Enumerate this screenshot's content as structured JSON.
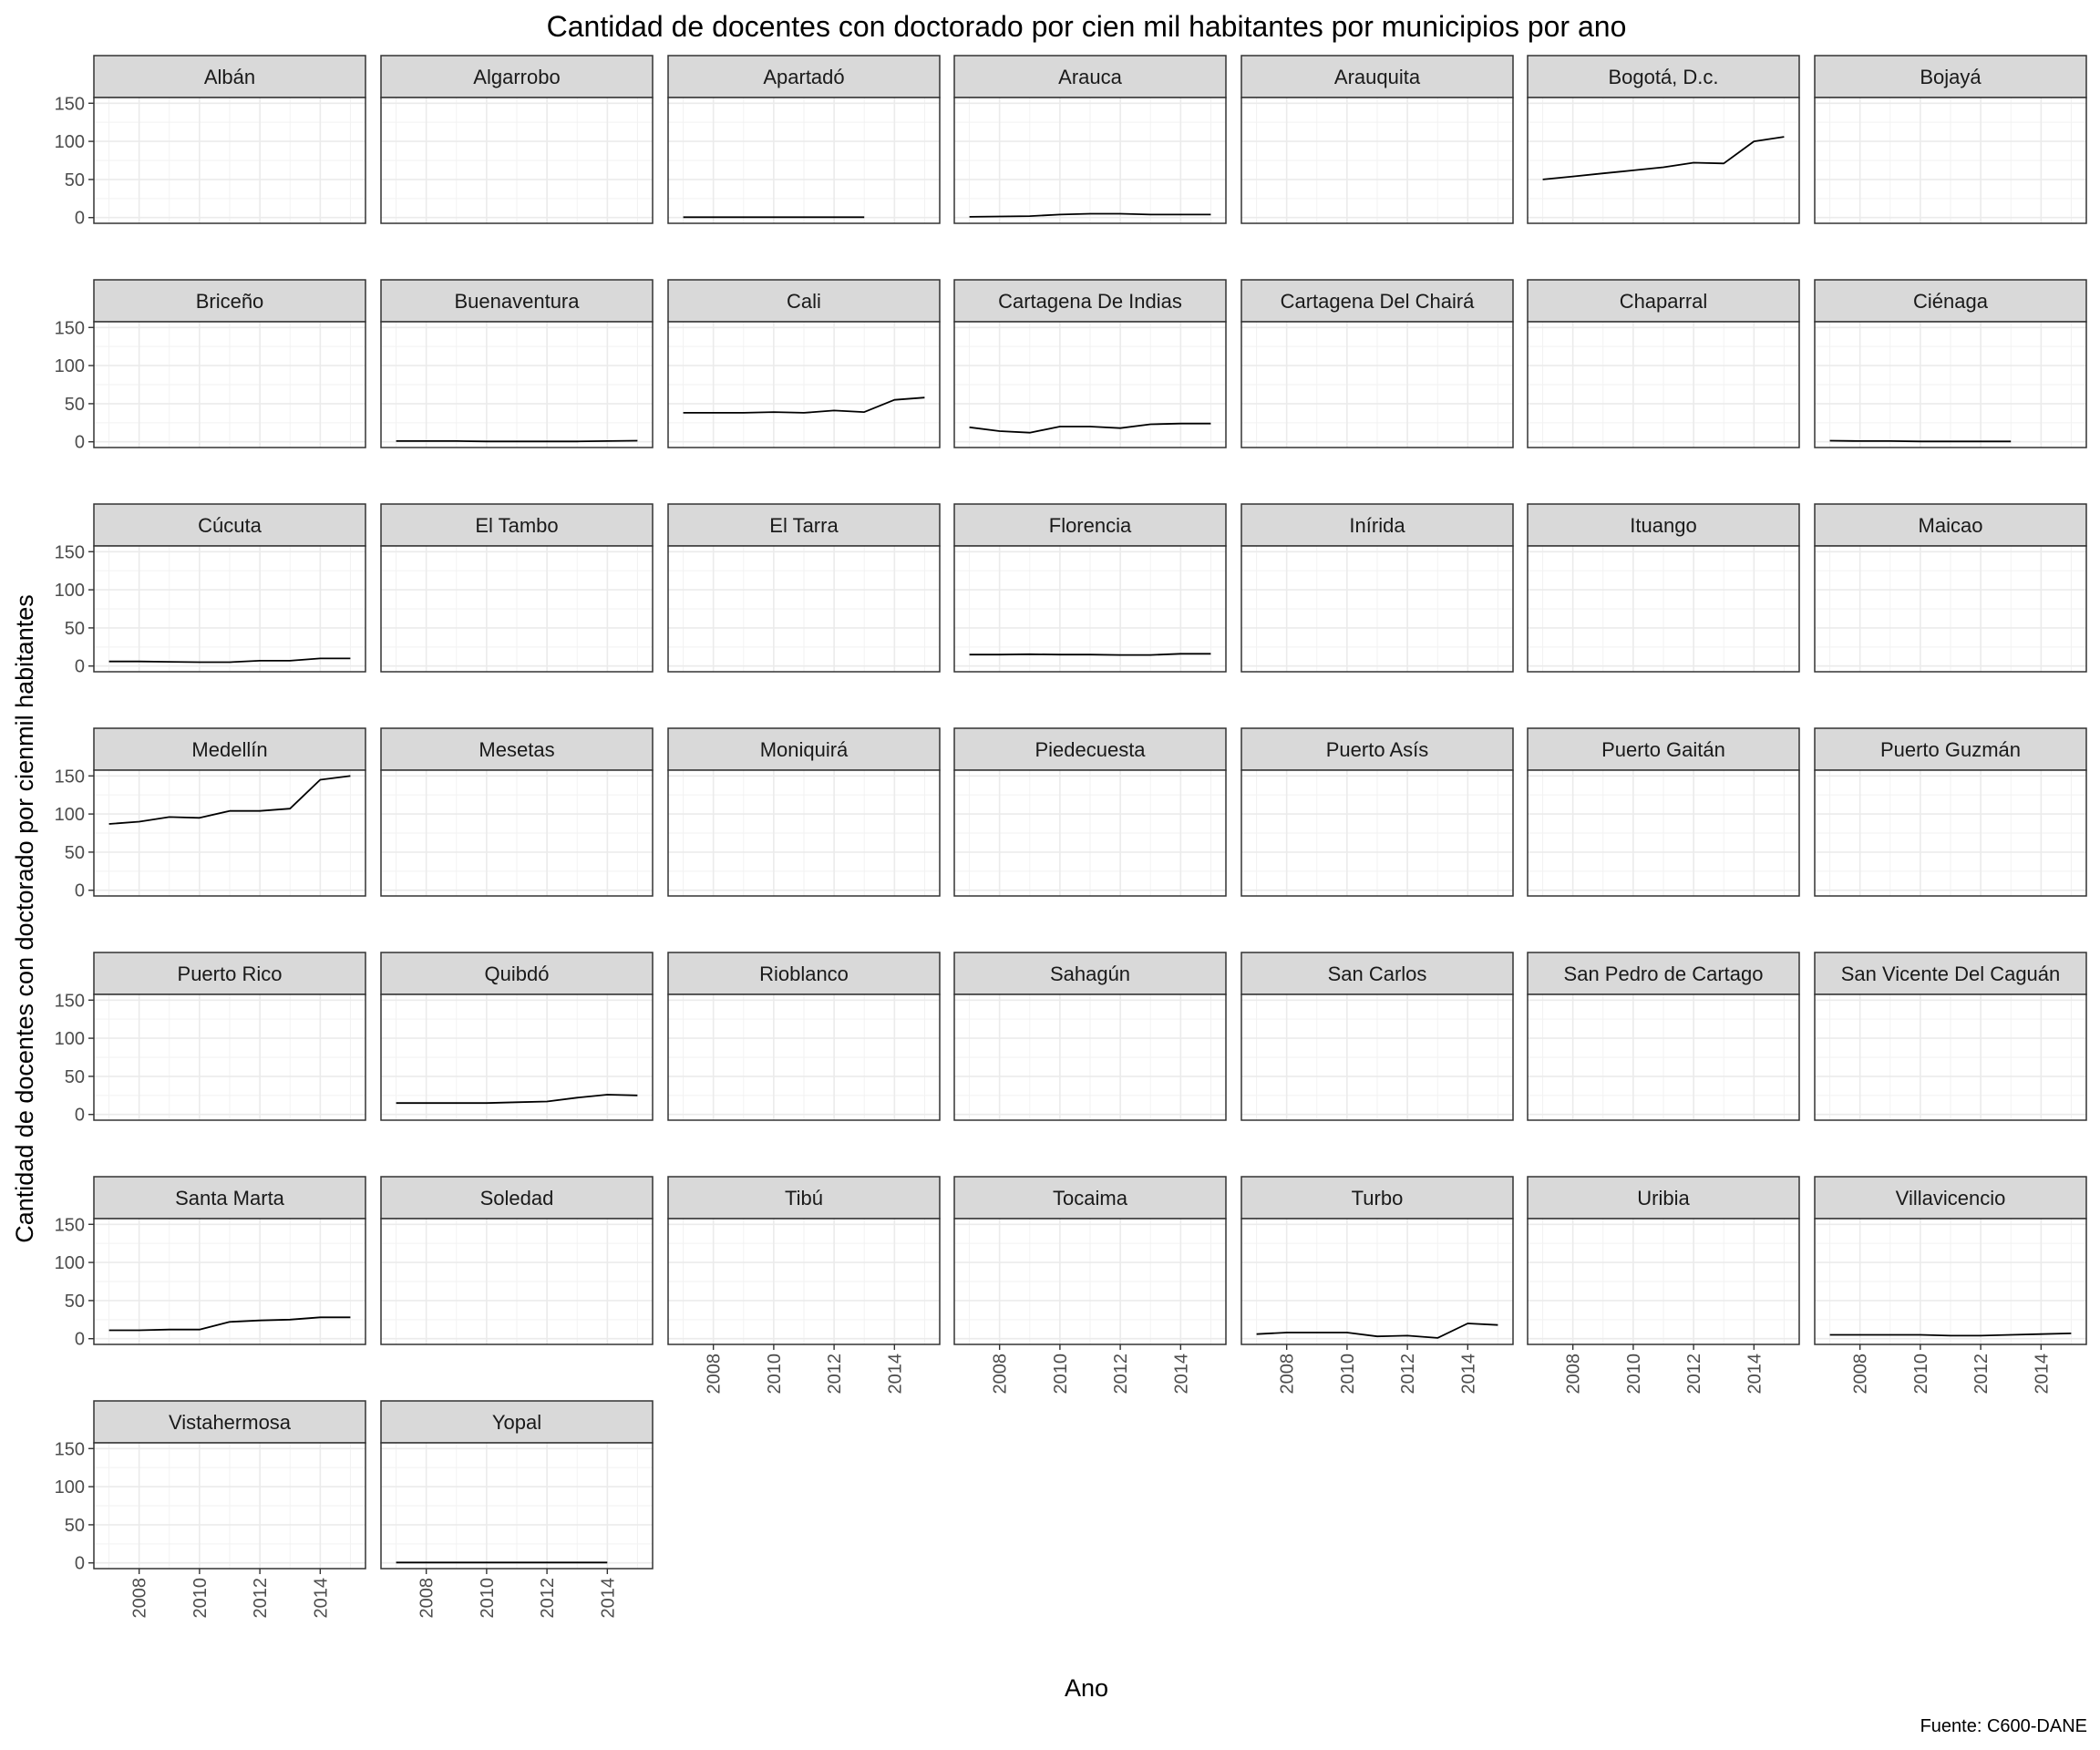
{
  "chart_data": {
    "type": "line",
    "title": "Cantidad de docentes con doctorado por cien mil habitantes por municipios por ano",
    "xlabel": "Ano",
    "ylabel": "Cantidad de docentes con doctorado por cienmil habitantes",
    "caption": "Fuente: C600-DANE",
    "xlim": [
      2006.5,
      2015.5
    ],
    "ylim": [
      -7.5,
      157.5
    ],
    "x_ticks": [
      2008,
      2010,
      2012,
      2014
    ],
    "y_ticks": [
      0,
      50,
      100,
      150
    ],
    "grid": true,
    "line_color": "#000000",
    "panels": [
      {
        "name": "Albán",
        "x": [],
        "y": []
      },
      {
        "name": "Algarrobo",
        "x": [],
        "y": []
      },
      {
        "name": "Apartadó",
        "x": [
          2007,
          2008,
          2009,
          2010,
          2011,
          2012,
          2013
        ],
        "y": [
          0.5,
          0.5,
          0.5,
          0.5,
          0.5,
          0.5,
          0.5
        ]
      },
      {
        "name": "Arauca",
        "x": [
          2007,
          2008,
          2009,
          2010,
          2011,
          2012,
          2013,
          2014,
          2015
        ],
        "y": [
          1,
          1.5,
          2,
          4,
          5,
          5,
          4,
          4,
          4
        ]
      },
      {
        "name": "Arauquita",
        "x": [],
        "y": []
      },
      {
        "name": "Bogotá, D.c.",
        "x": [
          2007,
          2008,
          2009,
          2010,
          2011,
          2012,
          2013,
          2014,
          2015
        ],
        "y": [
          50,
          54,
          58,
          62,
          66,
          72,
          71,
          100,
          106
        ]
      },
      {
        "name": "Bojayá",
        "x": [],
        "y": []
      },
      {
        "name": "Briceño",
        "x": [],
        "y": []
      },
      {
        "name": "Buenaventura",
        "x": [
          2007,
          2008,
          2009,
          2010,
          2011,
          2012,
          2013,
          2014,
          2015
        ],
        "y": [
          1,
          1,
          1,
          0.5,
          0.5,
          0.5,
          0.5,
          1,
          1.5
        ]
      },
      {
        "name": "Cali",
        "x": [
          2007,
          2008,
          2009,
          2010,
          2011,
          2012,
          2013,
          2014,
          2015
        ],
        "y": [
          38,
          38,
          38,
          39,
          38,
          41,
          39,
          55,
          58
        ]
      },
      {
        "name": "Cartagena De Indias",
        "x": [
          2007,
          2008,
          2009,
          2010,
          2011,
          2012,
          2013,
          2014,
          2015
        ],
        "y": [
          19,
          14,
          12,
          20,
          20,
          18,
          23,
          24,
          24
        ]
      },
      {
        "name": "Cartagena Del Chairá",
        "x": [],
        "y": []
      },
      {
        "name": "Chaparral",
        "x": [],
        "y": []
      },
      {
        "name": "Ciénaga",
        "x": [
          2007,
          2008,
          2009,
          2010,
          2011,
          2012,
          2013
        ],
        "y": [
          1.5,
          1,
          1,
          0.5,
          0.5,
          0.5,
          0.5
        ]
      },
      {
        "name": "Cúcuta",
        "x": [
          2007,
          2008,
          2009,
          2010,
          2011,
          2012,
          2013,
          2014,
          2015
        ],
        "y": [
          6,
          6,
          5.5,
          5,
          5,
          7,
          7,
          10,
          10
        ]
      },
      {
        "name": "El Tambo",
        "x": [],
        "y": []
      },
      {
        "name": "El Tarra",
        "x": [],
        "y": []
      },
      {
        "name": "Florencia",
        "x": [
          2007,
          2008,
          2009,
          2010,
          2011,
          2012,
          2013,
          2014,
          2015
        ],
        "y": [
          15,
          15,
          15.5,
          15,
          15,
          14.5,
          14.5,
          16,
          16
        ]
      },
      {
        "name": "Inírida",
        "x": [],
        "y": []
      },
      {
        "name": "Ituango",
        "x": [],
        "y": []
      },
      {
        "name": "Maicao",
        "x": [],
        "y": []
      },
      {
        "name": "Medellín",
        "x": [
          2007,
          2008,
          2009,
          2010,
          2011,
          2012,
          2013,
          2014,
          2015
        ],
        "y": [
          87,
          90,
          96,
          95,
          104,
          104,
          107,
          145,
          150
        ]
      },
      {
        "name": "Mesetas",
        "x": [],
        "y": []
      },
      {
        "name": "Moniquirá",
        "x": [],
        "y": []
      },
      {
        "name": "Piedecuesta",
        "x": [],
        "y": []
      },
      {
        "name": "Puerto Asís",
        "x": [],
        "y": []
      },
      {
        "name": "Puerto Gaitán",
        "x": [],
        "y": []
      },
      {
        "name": "Puerto Guzmán",
        "x": [],
        "y": []
      },
      {
        "name": "Puerto Rico",
        "x": [],
        "y": []
      },
      {
        "name": "Quibdó",
        "x": [
          2007,
          2008,
          2009,
          2010,
          2011,
          2012,
          2013,
          2014,
          2015
        ],
        "y": [
          15,
          15,
          15,
          15,
          16,
          17,
          22,
          26,
          25
        ]
      },
      {
        "name": "Rioblanco",
        "x": [],
        "y": []
      },
      {
        "name": "Sahagún",
        "x": [],
        "y": []
      },
      {
        "name": "San Carlos",
        "x": [],
        "y": []
      },
      {
        "name": "San Pedro de Cartago",
        "x": [],
        "y": []
      },
      {
        "name": "San Vicente Del Caguán",
        "x": [],
        "y": []
      },
      {
        "name": "Santa Marta",
        "x": [
          2007,
          2008,
          2009,
          2010,
          2011,
          2012,
          2013,
          2014,
          2015
        ],
        "y": [
          11,
          11,
          12,
          12,
          22,
          24,
          25,
          28,
          28
        ]
      },
      {
        "name": "Soledad",
        "x": [],
        "y": []
      },
      {
        "name": "Tibú",
        "x": [],
        "y": []
      },
      {
        "name": "Tocaima",
        "x": [],
        "y": []
      },
      {
        "name": "Turbo",
        "x": [
          2007,
          2008,
          2009,
          2010,
          2011,
          2012,
          2013,
          2014,
          2015
        ],
        "y": [
          6,
          8,
          8,
          8,
          3,
          4,
          1,
          20,
          18
        ]
      },
      {
        "name": "Uribia",
        "x": [],
        "y": []
      },
      {
        "name": "Villavicencio",
        "x": [
          2007,
          2008,
          2009,
          2010,
          2011,
          2012,
          2013,
          2014,
          2015
        ],
        "y": [
          5,
          5,
          5,
          5,
          4,
          4,
          5,
          6,
          7
        ]
      },
      {
        "name": "Vistahermosa",
        "x": [],
        "y": []
      },
      {
        "name": "Yopal",
        "x": [
          2007,
          2008,
          2009,
          2010,
          2011,
          2012,
          2013,
          2014
        ],
        "y": [
          0.5,
          0.5,
          0.5,
          0.5,
          0.5,
          0.5,
          0.5,
          0.5
        ]
      }
    ]
  }
}
